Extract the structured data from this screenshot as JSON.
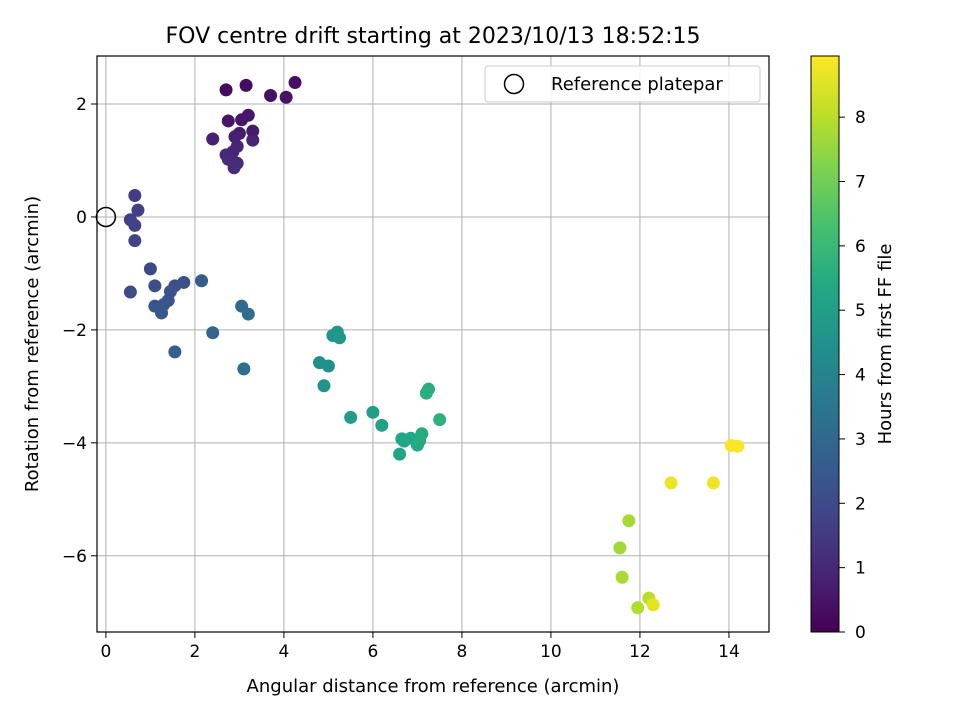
{
  "chart_data": {
    "type": "scatter",
    "title": "FOV centre drift starting at 2023/10/13 18:52:15",
    "xlabel": "Angular distance from reference (arcmin)",
    "ylabel": "Rotation from reference (arcmin)",
    "xlim": [
      -0.2,
      14.9
    ],
    "ylim": [
      -7.35,
      2.85
    ],
    "xticks": [
      0,
      2,
      4,
      6,
      8,
      10,
      12,
      14
    ],
    "yticks": [
      -6,
      -4,
      -2,
      0,
      2
    ],
    "grid": true,
    "legend": {
      "position": "top-right",
      "label": "Reference platepar"
    },
    "reference_point": {
      "x": 0,
      "y": 0
    },
    "colorbar": {
      "label": "Hours from first FF file",
      "colormap": "viridis",
      "range": [
        0,
        8.95
      ],
      "ticks": [
        0,
        1,
        2,
        3,
        4,
        5,
        6,
        7,
        8
      ]
    },
    "points": [
      {
        "x": 2.7,
        "y": 2.25,
        "h": 0.25
      },
      {
        "x": 3.15,
        "y": 2.33,
        "h": 0.3
      },
      {
        "x": 4.25,
        "y": 2.38,
        "h": 0.35
      },
      {
        "x": 3.7,
        "y": 2.15,
        "h": 0.4
      },
      {
        "x": 4.05,
        "y": 2.12,
        "h": 0.45
      },
      {
        "x": 2.75,
        "y": 1.7,
        "h": 0.5
      },
      {
        "x": 3.05,
        "y": 1.72,
        "h": 0.55
      },
      {
        "x": 3.2,
        "y": 1.8,
        "h": 0.6
      },
      {
        "x": 3.3,
        "y": 1.52,
        "h": 0.65
      },
      {
        "x": 3.0,
        "y": 1.48,
        "h": 0.7
      },
      {
        "x": 2.9,
        "y": 1.42,
        "h": 0.75
      },
      {
        "x": 2.4,
        "y": 1.38,
        "h": 0.8
      },
      {
        "x": 3.3,
        "y": 1.36,
        "h": 0.85
      },
      {
        "x": 2.95,
        "y": 1.25,
        "h": 0.9
      },
      {
        "x": 2.85,
        "y": 1.15,
        "h": 0.95
      },
      {
        "x": 2.7,
        "y": 1.1,
        "h": 1.0
      },
      {
        "x": 2.75,
        "y": 1.02,
        "h": 1.05
      },
      {
        "x": 2.95,
        "y": 0.95,
        "h": 1.1
      },
      {
        "x": 2.88,
        "y": 0.87,
        "h": 1.15
      },
      {
        "x": 0.65,
        "y": 0.38,
        "h": 1.6
      },
      {
        "x": 0.72,
        "y": 0.12,
        "h": 1.65
      },
      {
        "x": 0.55,
        "y": -0.05,
        "h": 1.7
      },
      {
        "x": 0.65,
        "y": -0.15,
        "h": 1.75
      },
      {
        "x": 0.65,
        "y": -0.42,
        "h": 1.8
      },
      {
        "x": 1.0,
        "y": -0.92,
        "h": 2.0
      },
      {
        "x": 0.55,
        "y": -1.33,
        "h": 2.05
      },
      {
        "x": 1.1,
        "y": -1.22,
        "h": 2.1
      },
      {
        "x": 1.55,
        "y": -1.22,
        "h": 2.15
      },
      {
        "x": 1.75,
        "y": -1.16,
        "h": 2.2
      },
      {
        "x": 1.45,
        "y": -1.32,
        "h": 2.25
      },
      {
        "x": 1.4,
        "y": -1.48,
        "h": 2.3
      },
      {
        "x": 1.1,
        "y": -1.58,
        "h": 2.35
      },
      {
        "x": 1.3,
        "y": -1.55,
        "h": 2.4
      },
      {
        "x": 1.25,
        "y": -1.7,
        "h": 2.45
      },
      {
        "x": 2.15,
        "y": -1.13,
        "h": 2.6
      },
      {
        "x": 1.55,
        "y": -2.39,
        "h": 2.7
      },
      {
        "x": 2.4,
        "y": -2.05,
        "h": 2.9
      },
      {
        "x": 3.05,
        "y": -1.58,
        "h": 3.1
      },
      {
        "x": 3.2,
        "y": -1.72,
        "h": 3.15
      },
      {
        "x": 3.1,
        "y": -2.69,
        "h": 3.3
      },
      {
        "x": 4.8,
        "y": -2.58,
        "h": 4.4
      },
      {
        "x": 5.0,
        "y": -2.64,
        "h": 4.45
      },
      {
        "x": 4.9,
        "y": -2.99,
        "h": 4.5
      },
      {
        "x": 5.1,
        "y": -2.1,
        "h": 4.6
      },
      {
        "x": 5.2,
        "y": -2.04,
        "h": 4.65
      },
      {
        "x": 5.25,
        "y": -2.14,
        "h": 4.7
      },
      {
        "x": 5.5,
        "y": -3.55,
        "h": 4.9
      },
      {
        "x": 6.0,
        "y": -3.46,
        "h": 5.0
      },
      {
        "x": 6.2,
        "y": -3.69,
        "h": 5.1
      },
      {
        "x": 6.6,
        "y": -4.2,
        "h": 5.2
      },
      {
        "x": 6.65,
        "y": -3.93,
        "h": 5.25
      },
      {
        "x": 6.7,
        "y": -3.97,
        "h": 5.3
      },
      {
        "x": 6.85,
        "y": -3.92,
        "h": 5.35
      },
      {
        "x": 7.0,
        "y": -4.04,
        "h": 5.4
      },
      {
        "x": 7.05,
        "y": -3.96,
        "h": 5.45
      },
      {
        "x": 7.1,
        "y": -3.84,
        "h": 5.5
      },
      {
        "x": 7.25,
        "y": -3.05,
        "h": 5.55
      },
      {
        "x": 7.2,
        "y": -3.12,
        "h": 5.6
      },
      {
        "x": 7.5,
        "y": -3.59,
        "h": 5.65
      },
      {
        "x": 11.55,
        "y": -5.86,
        "h": 7.7
      },
      {
        "x": 11.75,
        "y": -5.38,
        "h": 7.75
      },
      {
        "x": 11.6,
        "y": -6.38,
        "h": 7.8
      },
      {
        "x": 11.95,
        "y": -6.92,
        "h": 7.9
      },
      {
        "x": 12.2,
        "y": -6.75,
        "h": 8.0
      },
      {
        "x": 12.3,
        "y": -6.87,
        "h": 8.6
      },
      {
        "x": 12.7,
        "y": -4.71,
        "h": 8.7
      },
      {
        "x": 13.65,
        "y": -4.71,
        "h": 8.75
      },
      {
        "x": 14.05,
        "y": -4.05,
        "h": 8.85
      },
      {
        "x": 14.2,
        "y": -4.06,
        "h": 8.9
      }
    ]
  }
}
